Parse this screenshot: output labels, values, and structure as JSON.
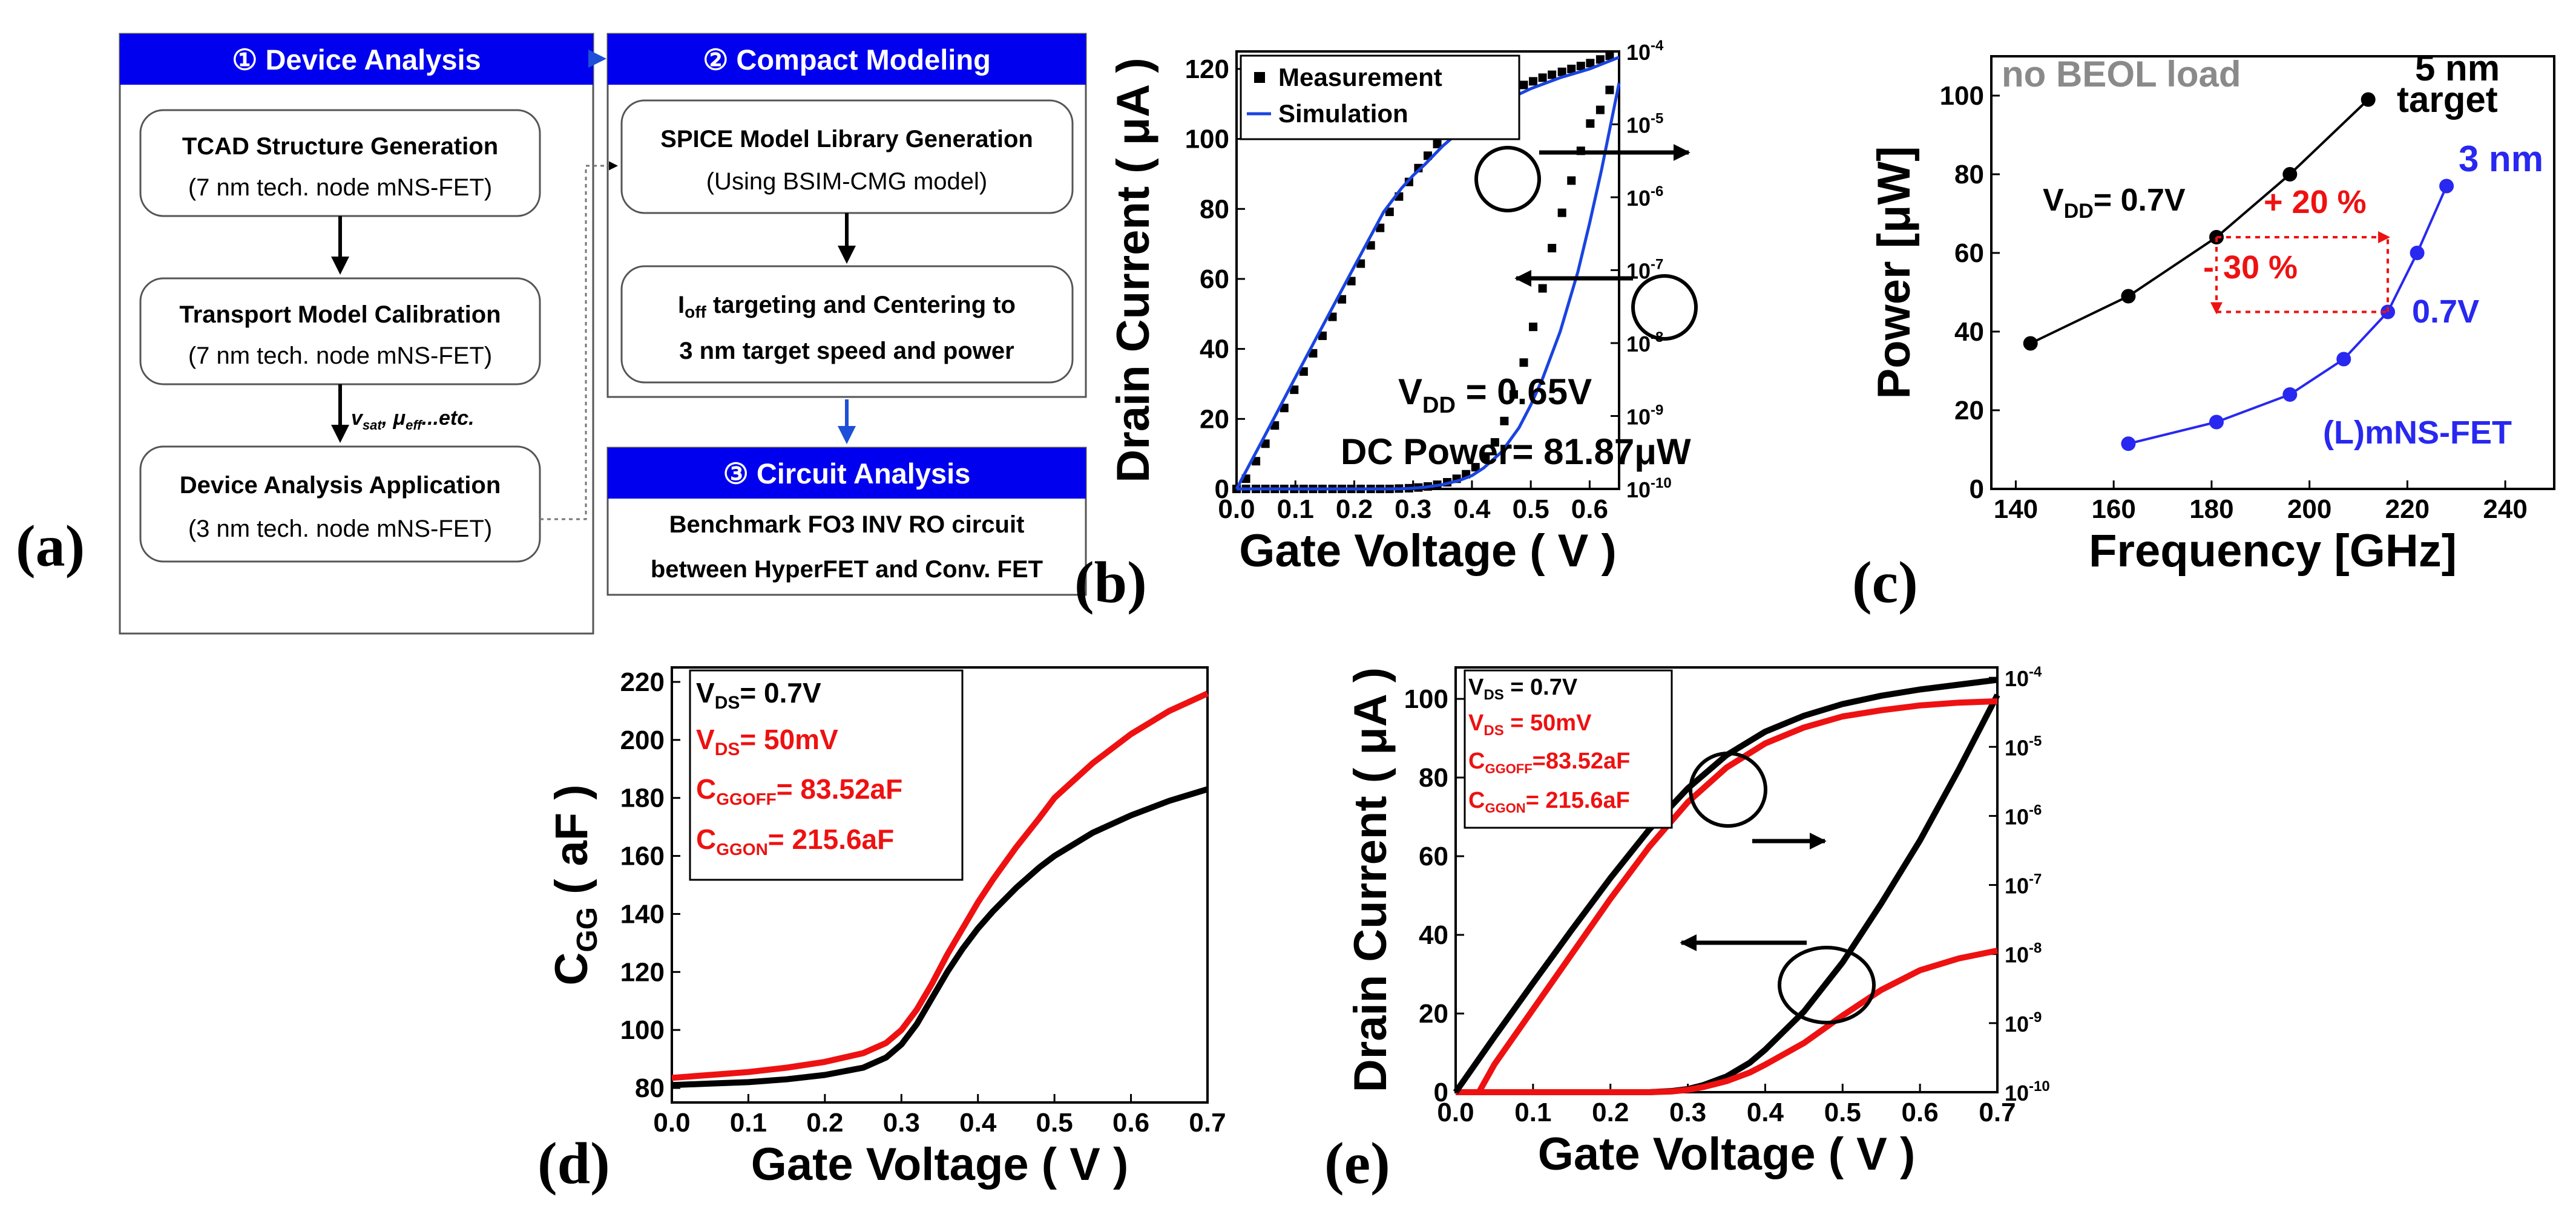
{
  "panel_labels": {
    "a": "(a)",
    "b": "(b)",
    "c": "(c)",
    "d": "(d)",
    "e": "(e)"
  },
  "flowchart": {
    "device_analysis_header": "① Device Analysis",
    "compact_modeling_header": "② Compact Modeling",
    "circuit_analysis_header": "③ Circuit Analysis",
    "tcad_title": "TCAD Structure Generation",
    "tcad_sub": "(7 nm tech. node mNS-FET)",
    "transport_title": "Transport Model Calibration",
    "transport_sub": "(7 nm tech. node mNS-FET)",
    "arrow_param_label": "v_sat, μ_eff...etc.",
    "arrow_param_v": "v",
    "arrow_param_sat": "sat",
    "arrow_param_mu": ", μ",
    "arrow_param_eff": "eff",
    "arrow_param_rest": "...etc.",
    "device_app_title": "Device Analysis Application",
    "device_app_sub": "(3 nm tech. node mNS-FET)",
    "spice_title": "SPICE Model Library Generation",
    "spice_sub": "(Using BSIM-CMG model)",
    "ioff_line1": "I_off targeting and Centering to",
    "ioff_I": "I",
    "ioff_off": "off",
    "ioff_rest": " targeting and Centering to",
    "ioff_line2": "3 nm target speed and power",
    "circuit_line1": "Benchmark FO3 INV RO circuit",
    "circuit_line2": "between HyperFET and Conv. FET",
    "colors": {
      "header_blue": "#0000ee",
      "box_border": "#555555",
      "arrow_blue": "#1d4fd8"
    }
  },
  "chart_data": [
    {
      "id": "b",
      "type": "line",
      "xlabel": "Gate Voltage ( V )",
      "ylabel": "Drain Current ( μA )",
      "xlim": [
        0.0,
        0.65
      ],
      "ylim": [
        0,
        125
      ],
      "x_ticks": [
        0.0,
        0.1,
        0.2,
        0.3,
        0.4,
        0.5,
        0.6
      ],
      "x_tick_labels": [
        "0.0",
        "0.1",
        "0.2",
        "0.3",
        "0.4",
        "0.5",
        "0.6"
      ],
      "y_ticks": [
        0,
        20,
        40,
        60,
        80,
        100,
        120
      ],
      "y_tick_labels": [
        "0",
        "20",
        "40",
        "60",
        "80",
        "100",
        "120"
      ],
      "y2_scale": "log",
      "y2lim_exp": [
        -10,
        -4
      ],
      "y2_tick_exps": [
        -10,
        -9,
        -8,
        -7,
        -6,
        -5,
        -4
      ],
      "y2_tick_base": "10",
      "y2_tick_sup": [
        "-10",
        "-9",
        "-8",
        "-7",
        "-6",
        "-5",
        "-4"
      ],
      "legend": [
        "Measurement",
        "Simulation"
      ],
      "annotations": {
        "vdd_main": "V",
        "vdd_sub": "DD",
        "vdd_rest": " = 0.65V",
        "dc_power": "DC Power= 81.87μW"
      },
      "series": [
        {
          "name": "Measurement (linear)",
          "axis": "left",
          "style": "markers",
          "color": "#000000",
          "x": [
            0.0,
            0.016,
            0.033,
            0.049,
            0.065,
            0.081,
            0.098,
            0.114,
            0.13,
            0.146,
            0.163,
            0.179,
            0.195,
            0.211,
            0.228,
            0.244,
            0.26,
            0.276,
            0.293,
            0.309,
            0.325,
            0.341,
            0.358,
            0.374,
            0.39,
            0.406,
            0.423,
            0.439,
            0.455,
            0.471,
            0.488,
            0.504,
            0.52,
            0.536,
            0.553,
            0.569,
            0.585,
            0.601,
            0.618,
            0.634
          ],
          "y": [
            0,
            0,
            0,
            0,
            0,
            0,
            0,
            0,
            0,
            0,
            0,
            0,
            0,
            0,
            0,
            0,
            0,
            0.1,
            0.2,
            0.4,
            0.7,
            1.2,
            1.9,
            2.9,
            4.2,
            6.2,
            9.1,
            13.3,
            19.4,
            27.0,
            36.1,
            46.3,
            57.3,
            68.8,
            78.9,
            88.1,
            96.6,
            104.4,
            108.3,
            114.0
          ]
        },
        {
          "name": "Simulation (linear)",
          "axis": "left",
          "style": "line",
          "color": "#1a44e0",
          "x": [
            0.0,
            0.05,
            0.1,
            0.15,
            0.2,
            0.25,
            0.28,
            0.3,
            0.32,
            0.35,
            0.38,
            0.4,
            0.42,
            0.45,
            0.48,
            0.5,
            0.52,
            0.55,
            0.58,
            0.6,
            0.62,
            0.65
          ],
          "y": [
            0,
            0,
            0,
            0,
            0,
            0,
            0.05,
            0.2,
            0.5,
            1.2,
            2.5,
            3.8,
            6,
            10.5,
            17.5,
            24,
            31.5,
            45,
            62,
            76,
            91,
            116
          ]
        },
        {
          "name": "Measurement (log)",
          "axis": "right",
          "style": "markers",
          "color": "#000000",
          "x": [
            0.016,
            0.033,
            0.049,
            0.065,
            0.081,
            0.098,
            0.114,
            0.13,
            0.146,
            0.163,
            0.179,
            0.195,
            0.211,
            0.228,
            0.244,
            0.26,
            0.276,
            0.293,
            0.309,
            0.325,
            0.341,
            0.358,
            0.374,
            0.39,
            0.406,
            0.423,
            0.439,
            0.455,
            0.471,
            0.488,
            0.504,
            0.52,
            0.536,
            0.553,
            0.569,
            0.585,
            0.601,
            0.618,
            0.634
          ],
          "y_exp": [
            -9.86,
            -9.62,
            -9.38,
            -9.13,
            -8.89,
            -8.64,
            -8.39,
            -8.14,
            -7.9,
            -7.64,
            -7.4,
            -7.15,
            -6.91,
            -6.66,
            -6.42,
            -6.2,
            -5.99,
            -5.79,
            -5.6,
            -5.43,
            -5.27,
            -5.13,
            -5.01,
            -4.9,
            -4.81,
            -4.73,
            -4.65,
            -4.58,
            -4.52,
            -4.46,
            -4.41,
            -4.36,
            -4.32,
            -4.28,
            -4.24,
            -4.2,
            -4.16,
            -4.11,
            -4.06
          ]
        },
        {
          "name": "Simulation (log)",
          "axis": "right",
          "style": "line",
          "color": "#1a44e0",
          "x": [
            0.0,
            0.05,
            0.1,
            0.15,
            0.2,
            0.25,
            0.28,
            0.3,
            0.32,
            0.35,
            0.4,
            0.45,
            0.5,
            0.55,
            0.6,
            0.65
          ],
          "y_exp": [
            -10.0,
            -9.24,
            -8.47,
            -7.71,
            -6.95,
            -6.2,
            -5.88,
            -5.7,
            -5.55,
            -5.3,
            -4.95,
            -4.7,
            -4.51,
            -4.36,
            -4.24,
            -4.08
          ]
        }
      ]
    },
    {
      "id": "c",
      "type": "line",
      "xlabel": "Frequency [GHz]",
      "ylabel": "Power [μW]",
      "xlim": [
        135,
        250
      ],
      "ylim": [
        0,
        110
      ],
      "x_ticks": [
        140,
        160,
        180,
        200,
        220,
        240
      ],
      "x_tick_labels": [
        "140",
        "160",
        "180",
        "200",
        "220",
        "240"
      ],
      "y_ticks": [
        0,
        20,
        40,
        60,
        80,
        100
      ],
      "y_tick_labels": [
        "0",
        "20",
        "40",
        "60",
        "80",
        "100"
      ],
      "annotations": {
        "no_beol": "no BEOL load",
        "target_5nm_line1": "5 nm",
        "target_5nm_line2": "target",
        "label_3nm": "3 nm",
        "vdd_main": "V",
        "vdd_sub": "DD",
        "vdd_rest": "= 0.7V",
        "vdd_blue": "0.7V",
        "mnsfet": "(L)mNS-FET",
        "plus20": "+ 20 %",
        "minus30": "- 30 %"
      },
      "series": [
        {
          "name": "5 nm target",
          "color": "#000000",
          "x": [
            143,
            163,
            181,
            196,
            212
          ],
          "y": [
            37,
            49,
            64,
            80,
            99
          ]
        },
        {
          "name": "3 nm (L)mNS-FET",
          "color": "#2828f0",
          "x": [
            163,
            181,
            196,
            207,
            216,
            222,
            228
          ],
          "y": [
            11.5,
            17,
            24,
            33,
            45,
            60,
            77
          ]
        }
      ],
      "diff_box_color": "#ee1111"
    },
    {
      "id": "d",
      "type": "line",
      "xlabel": "Gate Voltage ( V )",
      "ylabel": "C_GG ( aF )",
      "ylabel_main": "C",
      "ylabel_sub": "GG",
      "ylabel_rest": " ( aF )",
      "xlim": [
        0.0,
        0.7
      ],
      "ylim": [
        75,
        225
      ],
      "x_ticks": [
        0.0,
        0.1,
        0.2,
        0.3,
        0.4,
        0.5,
        0.6,
        0.7
      ],
      "x_tick_labels": [
        "0.0",
        "0.1",
        "0.2",
        "0.3",
        "0.4",
        "0.5",
        "0.6",
        "0.7"
      ],
      "y_ticks": [
        80,
        100,
        120,
        140,
        160,
        180,
        200,
        220
      ],
      "y_tick_labels": [
        "80",
        "100",
        "120",
        "140",
        "160",
        "180",
        "200",
        "220"
      ],
      "legend": {
        "vds1_main": "V",
        "vds1_sub": "DS",
        "vds1_rest": "= 0.7V",
        "vds2_main": "V",
        "vds2_sub": "DS",
        "vds2_rest": "= 50mV",
        "cggoff_main": "C",
        "cggoff_sub": "GGOFF",
        "cggoff_rest": "= 83.52aF",
        "cggon_main": "C",
        "cggon_sub": "GGON",
        "cggon_rest": "=  215.6aF"
      },
      "series": [
        {
          "name": "VDS = 0.7V",
          "color": "#000000",
          "x": [
            0.0,
            0.05,
            0.1,
            0.15,
            0.2,
            0.25,
            0.28,
            0.3,
            0.32,
            0.34,
            0.36,
            0.38,
            0.4,
            0.42,
            0.45,
            0.48,
            0.5,
            0.55,
            0.6,
            0.65,
            0.7
          ],
          "y": [
            81,
            81.5,
            82,
            83,
            84.5,
            87,
            90.5,
            95,
            102,
            111,
            120,
            128,
            135,
            141,
            149,
            156,
            160,
            168,
            174,
            179,
            183
          ]
        },
        {
          "name": "VDS = 50mV",
          "color": "#ee1111",
          "x": [
            0.0,
            0.05,
            0.1,
            0.15,
            0.2,
            0.25,
            0.28,
            0.3,
            0.32,
            0.34,
            0.36,
            0.38,
            0.4,
            0.42,
            0.45,
            0.48,
            0.5,
            0.55,
            0.6,
            0.65,
            0.7
          ],
          "y": [
            83.5,
            84.5,
            85.5,
            87,
            89,
            92,
            95.5,
            100,
            107,
            116,
            126,
            135,
            144,
            152,
            163,
            173,
            180,
            192,
            202,
            210,
            216
          ]
        }
      ]
    },
    {
      "id": "e",
      "type": "line",
      "xlabel": "Gate Voltage ( V )",
      "ylabel": "Drain Current ( μA )",
      "xlim": [
        0.0,
        0.7
      ],
      "ylim": [
        0,
        108
      ],
      "x_ticks": [
        0.0,
        0.1,
        0.2,
        0.3,
        0.4,
        0.5,
        0.6,
        0.7
      ],
      "x_tick_labels": [
        "0.0",
        "0.1",
        "0.2",
        "0.3",
        "0.4",
        "0.5",
        "0.6",
        "0.7"
      ],
      "y_ticks": [
        0,
        20,
        40,
        60,
        80,
        100
      ],
      "y_tick_labels": [
        "0",
        "20",
        "40",
        "60",
        "80",
        "100"
      ],
      "y2_scale": "log",
      "y2lim_exp": [
        -10,
        -3.85
      ],
      "y2_tick_exps": [
        -10,
        -9,
        -8,
        -7,
        -6,
        -5,
        -4
      ],
      "y2_tick_base": "10",
      "y2_tick_sup": [
        "-10",
        "-9",
        "-8",
        "-7",
        "-6",
        "-5",
        "-4"
      ],
      "legend": {
        "vds1_main": "V",
        "vds1_sub": "DS",
        "vds1_rest": " = 0.7V",
        "vds2_main": "V",
        "vds2_sub": "DS",
        "vds2_rest": " = 50mV",
        "cggoff_main": "C",
        "cggoff_sub": "GGOFF",
        "cggoff_rest": "=83.52aF",
        "cggon_main": "C",
        "cggon_sub": "GGON",
        "cggon_rest": "= 215.6aF"
      },
      "series": [
        {
          "name": "VDS = 0.7V (linear)",
          "axis": "left",
          "color": "#000000",
          "x": [
            0.0,
            0.1,
            0.2,
            0.25,
            0.28,
            0.3,
            0.32,
            0.35,
            0.38,
            0.4,
            0.45,
            0.5,
            0.55,
            0.6,
            0.65,
            0.7
          ],
          "y": [
            0,
            0,
            0,
            0,
            0.3,
            0.8,
            1.8,
            4,
            7.5,
            10.8,
            20.5,
            33,
            48,
            64,
            82,
            101
          ]
        },
        {
          "name": "VDS = 50mV (linear)",
          "axis": "left",
          "color": "#ee1111",
          "x": [
            0.0,
            0.1,
            0.2,
            0.25,
            0.28,
            0.3,
            0.32,
            0.35,
            0.38,
            0.4,
            0.45,
            0.5,
            0.55,
            0.6,
            0.65,
            0.7
          ],
          "y": [
            0,
            0,
            0,
            0,
            0.2,
            0.6,
            1.3,
            2.8,
            5,
            7,
            12.5,
            19.5,
            26,
            31,
            34,
            36
          ]
        },
        {
          "name": "VDS = 0.7V (log)",
          "axis": "right",
          "color": "#000000",
          "x": [
            0.0,
            0.05,
            0.1,
            0.15,
            0.2,
            0.25,
            0.3,
            0.35,
            0.4,
            0.45,
            0.5,
            0.55,
            0.6,
            0.65,
            0.7
          ],
          "y_exp": [
            -10.0,
            -9.2,
            -8.42,
            -7.65,
            -6.9,
            -6.2,
            -5.6,
            -5.12,
            -4.78,
            -4.55,
            -4.38,
            -4.26,
            -4.17,
            -4.1,
            -4.03
          ]
        },
        {
          "name": "VDS = 50mV (log)",
          "axis": "right",
          "color": "#ee1111",
          "x": [
            0.03,
            0.05,
            0.1,
            0.15,
            0.2,
            0.25,
            0.3,
            0.35,
            0.4,
            0.45,
            0.5,
            0.55,
            0.6,
            0.65,
            0.7
          ],
          "y_exp": [
            -10.0,
            -9.6,
            -8.8,
            -8.0,
            -7.2,
            -6.45,
            -5.8,
            -5.3,
            -4.95,
            -4.72,
            -4.56,
            -4.47,
            -4.4,
            -4.36,
            -4.34
          ]
        }
      ]
    }
  ]
}
